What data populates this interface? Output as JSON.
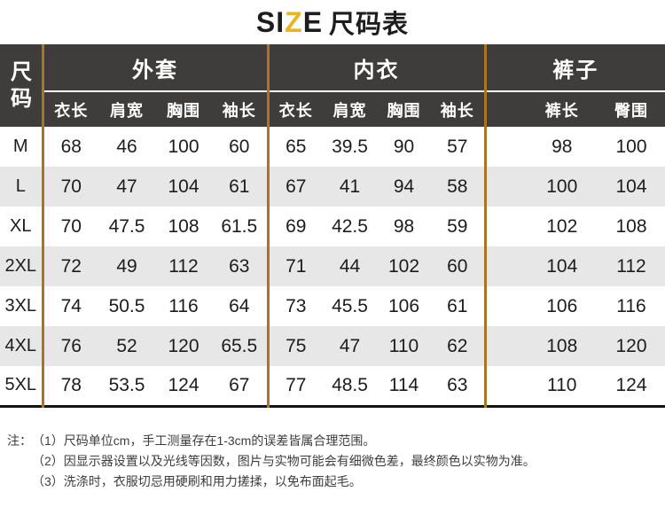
{
  "title": {
    "size_prefix": "SI",
    "size_accent": "Z",
    "size_suffix": "E",
    "cjk": "尺码表"
  },
  "colors": {
    "accent_gold": "#e8b425",
    "divider_orange": "#a8761b",
    "header_bg": "#3e3d3c",
    "row_alt_gray": "#e7e7e7",
    "bottom_rule": "#141414"
  },
  "table": {
    "size_col_header": "尺码",
    "groups": [
      {
        "label": "外套",
        "columns": [
          "衣长",
          "肩宽",
          "胸围",
          "袖长"
        ]
      },
      {
        "label": "内衣",
        "columns": [
          "衣长",
          "肩宽",
          "胸围",
          "袖长"
        ]
      },
      {
        "label": "裤子",
        "columns": [
          "裤长",
          "臀围"
        ]
      }
    ],
    "rows": [
      {
        "size": "M",
        "values": [
          "68",
          "46",
          "100",
          "60",
          "65",
          "39.5",
          "90",
          "57",
          "98",
          "100"
        ]
      },
      {
        "size": "L",
        "values": [
          "70",
          "47",
          "104",
          "61",
          "67",
          "41",
          "94",
          "58",
          "100",
          "104"
        ]
      },
      {
        "size": "XL",
        "values": [
          "70",
          "47.5",
          "108",
          "61.5",
          "69",
          "42.5",
          "98",
          "59",
          "102",
          "108"
        ]
      },
      {
        "size": "2XL",
        "values": [
          "72",
          "49",
          "112",
          "63",
          "71",
          "44",
          "102",
          "60",
          "104",
          "112"
        ]
      },
      {
        "size": "3XL",
        "values": [
          "74",
          "50.5",
          "116",
          "64",
          "73",
          "45.5",
          "106",
          "61",
          "106",
          "116"
        ]
      },
      {
        "size": "4XL",
        "values": [
          "76",
          "52",
          "120",
          "65.5",
          "75",
          "47",
          "110",
          "62",
          "108",
          "120"
        ]
      },
      {
        "size": "5XL",
        "values": [
          "78",
          "53.5",
          "124",
          "67",
          "77",
          "48.5",
          "114",
          "63",
          "110",
          "124"
        ]
      }
    ]
  },
  "notes": {
    "prefix": "注：",
    "items": [
      "（1）尺码单位cm，手工测量存在1-3cm的误差皆属合理范围。",
      "（2）因显示器设置以及光线等因数，图片与实物可能会有细微色差，最终颜色以实物为准。",
      "（3）洗涤时，衣服切忌用硬刷和用力搓揉，以免布面起毛。"
    ]
  }
}
